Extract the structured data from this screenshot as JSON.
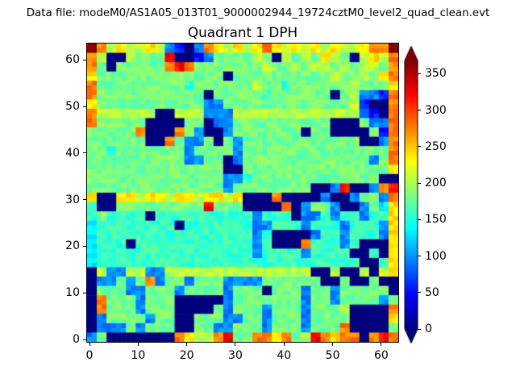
{
  "figure": {
    "annotation": "Data file: modeM0/AS1A05_013T01_9000002944_19724cztM0_level2_quad_clean.evt",
    "title": "Quadrant 1 DPH",
    "background_color": "#ffffff",
    "text_color": "#000000"
  },
  "chart_data": {
    "type": "heatmap",
    "title": "Quadrant 1 DPH",
    "colormap": "jet",
    "native_resolution": [
      64,
      64
    ],
    "grid_resolution": [
      32,
      32
    ],
    "orientation": "grid_rows listed top (y=63) to bottom (y=0); each row runs x=0 (left) to x=63 (right); each character covers a 2x2 pixel block",
    "xlabel": "",
    "ylabel": "",
    "x_ticks": [
      0,
      10,
      20,
      30,
      40,
      50,
      60
    ],
    "y_ticks": [
      0,
      10,
      20,
      30,
      40,
      50,
      60
    ],
    "xlim": [
      -0.5,
      63.5
    ],
    "ylim": [
      -0.5,
      63.5
    ],
    "grid": false,
    "colorbar": {
      "ticks": [
        0,
        50,
        100,
        150,
        200,
        250,
        300,
        350
      ],
      "vmin": 0,
      "vmax": 368,
      "extend": "both",
      "over_color": "#7f0000",
      "under_color": "#00007f",
      "position": "right"
    },
    "value_palette": {
      "n": 0,
      "d": 55,
      "b": 95,
      "c": 135,
      "t": 158,
      "g": 180,
      "G": 205,
      "y": 238,
      "o": 276,
      "r": 322,
      "R": 366
    },
    "grid_rows": [
      "RoGyGGyGbdnboyGyGyoyGyGyGyGGyooR",
      "oGnnGgggrnndbggggGgnGgGgyGgnGyGo",
      "ogngggggorogggggggGggGgGGgGgGGgo",
      "ygggggggggggggnggggggggggGggGgyo",
      "ogggggggggtggggggGggtggggggGgggy",
      "ogggggggggggngggggtggggggngGbbdo",
      "ygggggggggggbbgggggggggggggGdnno",
      "oGGGGGGnnGGGbbbGGGGGGGGGGGGGbdno",
      "ogggggnnnnggnbbggggggggggnnngbbo",
      "gggggonnnogbnnbgggggggnggnnnngdo",
      "ggggggnnogbbgngbggggggggggggnnbo",
      "ggtgggggggbggggbgggggggggggggggo",
      "ggggggggggbbggnbgggggggggggggbgo",
      "ggggggggggggggnngggggggggggggggy",
      "ggggggggggggggbbtgggggggggggggnn",
      "ggggggggggggggbggggggggnnbrnnbor",
      "ynnyyGyyGyyGyyGynnnonnnnbnnbggbo",
      "tnngggggggggrgggnnnnonbggbnnbgcy",
      "tgttttnttttttttttbtttnbbtbttbtty",
      "cttttttttntttttttbbtttbtttbtttby",
      "cttttttttttttttttbtnnnnbttbtttby",
      "ctttnttttttttttttbtnnnotttbtnnny",
      "cttttttttttttttttbttttbttttnntny",
      "ctttttttttttttttttttttttttttnnty",
      "nGbbGGbbGGGGGGGGGGGGGGGnnGnnGnGy",
      "nbbgbgobggbgggbbbbggggggnngnngnn",
      "ngggbbgggbggggbgggngggbggbgggggn",
      "nogggbgggnnnnnbgggggggbggbggggbg",
      "nogggbgggnnnngbgggbgggbgggGnnnno",
      "nbggggbggnngggbbggbgggbggggnnnny",
      "nbbbgbgggnnggbbgggbgggbgggonnnng",
      "bgnnnnnnnoyGGorggooyogGroyoonoro"
    ]
  }
}
